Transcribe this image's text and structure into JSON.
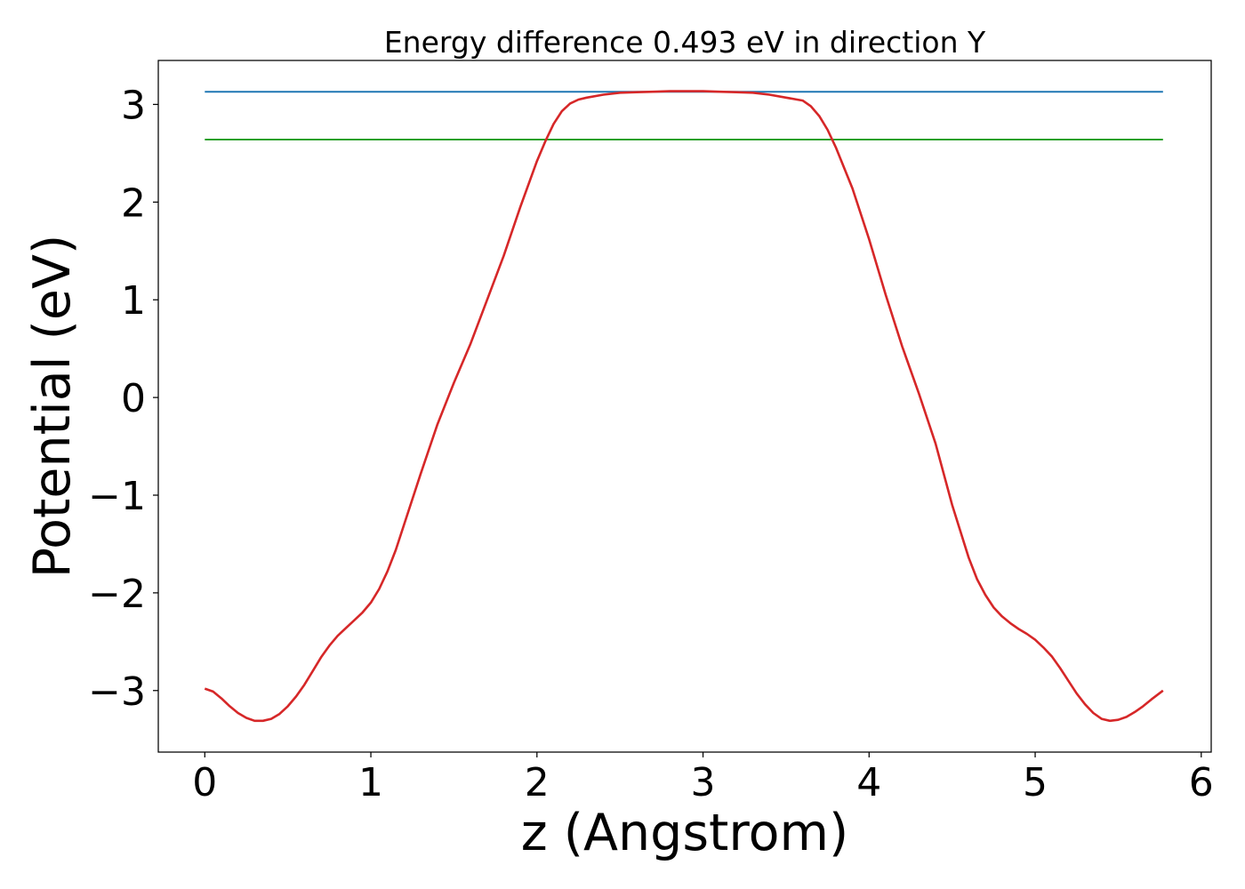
{
  "chart_data": {
    "type": "line",
    "title": "Energy difference 0.493 eV in direction Y",
    "xlabel": "z (Angstrom)",
    "ylabel": "Potential (eV)",
    "xlim": [
      -0.28,
      6.06
    ],
    "ylim": [
      -3.63,
      3.45
    ],
    "xticks": [
      0,
      1,
      2,
      3,
      4,
      5,
      6
    ],
    "xtick_labels": [
      "0",
      "1",
      "2",
      "3",
      "4",
      "5",
      "6"
    ],
    "yticks": [
      -3,
      -2,
      -1,
      0,
      1,
      2,
      3
    ],
    "ytick_labels": [
      "−3",
      "−2",
      "−1",
      "0",
      "1",
      "2",
      "3"
    ],
    "grid": false,
    "legend": "none",
    "series": [
      {
        "color": "#1f77b4",
        "x": [
          0,
          5.77
        ],
        "y": [
          3.13,
          3.13
        ]
      },
      {
        "color": "#2ca02c",
        "x": [
          0,
          5.77
        ],
        "y": [
          2.64,
          2.64
        ]
      },
      {
        "color": "#d62728",
        "x": [
          0.0,
          0.05,
          0.1,
          0.15,
          0.2,
          0.25,
          0.3,
          0.35,
          0.4,
          0.45,
          0.5,
          0.55,
          0.6,
          0.65,
          0.7,
          0.75,
          0.8,
          0.85,
          0.9,
          0.95,
          1.0,
          1.05,
          1.1,
          1.15,
          1.2,
          1.3,
          1.4,
          1.5,
          1.6,
          1.7,
          1.8,
          1.9,
          2.0,
          2.05,
          2.1,
          2.15,
          2.2,
          2.25,
          2.3,
          2.4,
          2.5,
          2.6,
          2.7,
          2.8,
          2.9,
          3.0,
          3.1,
          3.2,
          3.3,
          3.4,
          3.5,
          3.6,
          3.65,
          3.7,
          3.75,
          3.8,
          3.9,
          4.0,
          4.1,
          4.2,
          4.3,
          4.4,
          4.5,
          4.6,
          4.65,
          4.7,
          4.75,
          4.8,
          4.85,
          4.9,
          4.95,
          5.0,
          5.05,
          5.1,
          5.15,
          5.2,
          5.25,
          5.3,
          5.35,
          5.4,
          5.45,
          5.5,
          5.55,
          5.6,
          5.65,
          5.7,
          5.77
        ],
        "y": [
          -2.98,
          -3.01,
          -3.08,
          -3.16,
          -3.23,
          -3.28,
          -3.31,
          -3.31,
          -3.29,
          -3.24,
          -3.16,
          -3.06,
          -2.94,
          -2.8,
          -2.66,
          -2.54,
          -2.44,
          -2.36,
          -2.28,
          -2.2,
          -2.1,
          -1.96,
          -1.78,
          -1.56,
          -1.3,
          -0.78,
          -0.28,
          0.15,
          0.55,
          1.0,
          1.45,
          1.95,
          2.42,
          2.62,
          2.8,
          2.93,
          3.01,
          3.05,
          3.07,
          3.1,
          3.12,
          3.125,
          3.13,
          3.135,
          3.135,
          3.135,
          3.13,
          3.125,
          3.12,
          3.1,
          3.07,
          3.04,
          2.98,
          2.88,
          2.74,
          2.56,
          2.14,
          1.62,
          1.05,
          0.52,
          0.04,
          -0.47,
          -1.1,
          -1.64,
          -1.86,
          -2.02,
          -2.15,
          -2.24,
          -2.31,
          -2.37,
          -2.42,
          -2.48,
          -2.56,
          -2.65,
          -2.77,
          -2.9,
          -3.03,
          -3.14,
          -3.23,
          -3.29,
          -3.31,
          -3.3,
          -3.27,
          -3.22,
          -3.16,
          -3.09,
          -3.0
        ]
      }
    ]
  }
}
